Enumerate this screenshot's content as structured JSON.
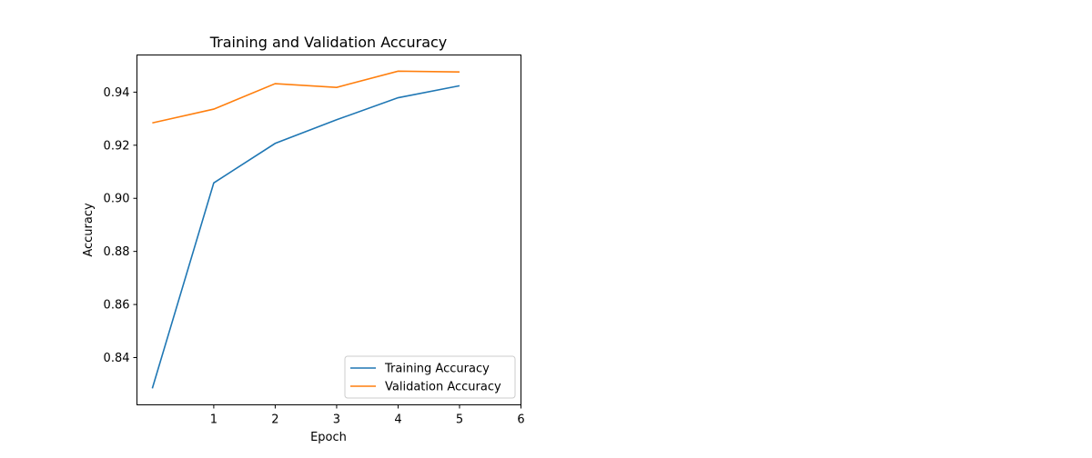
{
  "chart_data": {
    "type": "line",
    "title": "Training and Validation Accuracy",
    "xlabel": "Epoch",
    "ylabel": "Accuracy",
    "x": [
      0,
      1,
      2,
      3,
      4,
      5
    ],
    "xticks": [
      1,
      2,
      3,
      4,
      5,
      6
    ],
    "yticks": [
      0.84,
      0.86,
      0.88,
      0.9,
      0.92,
      0.94
    ],
    "xlim": [
      -0.25,
      6
    ],
    "ylim": [
      0.8222,
      0.954
    ],
    "grid": false,
    "legend_position": "lower-right",
    "series": [
      {
        "name": "Training Accuracy",
        "color": "#1f77b4",
        "values": [
          0.8284,
          0.9058,
          0.9207,
          0.9296,
          0.9379,
          0.9424
        ]
      },
      {
        "name": "Validation Accuracy",
        "color": "#ff7f0e",
        "values": [
          0.9284,
          0.9336,
          0.9432,
          0.9418,
          0.9479,
          0.9476
        ]
      }
    ]
  }
}
